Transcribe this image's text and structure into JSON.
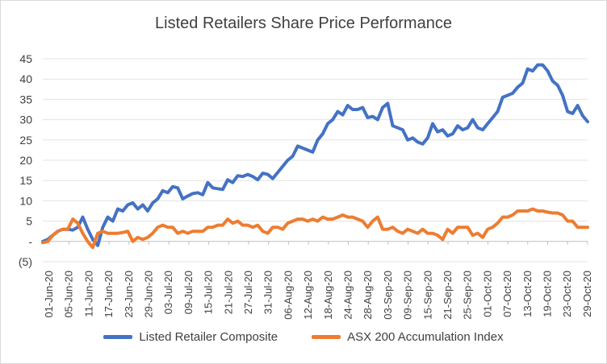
{
  "chart_data": {
    "type": "line",
    "title": "Listed Retailers Share Price Performance",
    "xlabel": "",
    "ylabel": "",
    "ylim": [
      -5,
      45
    ],
    "yticks": [
      "45",
      "40",
      "35",
      "30",
      "25",
      "20",
      "15",
      "10",
      "5",
      "-",
      "(5)"
    ],
    "ytick_values": [
      45,
      40,
      35,
      30,
      25,
      20,
      15,
      10,
      5,
      0,
      -5
    ],
    "grid": true,
    "legend_position": "bottom",
    "x_tick_labels": [
      "01-Jun-20",
      "05-Jun-20",
      "11-Jun-20",
      "17-Jun-20",
      "23-Jun-20",
      "29-Jun-20",
      "03-Jul-20",
      "09-Jul-20",
      "15-Jul-20",
      "21-Jul-20",
      "27-Jul-20",
      "31-Jul-20",
      "06-Aug-20",
      "12-Aug-20",
      "18-Aug-20",
      "24-Aug-20",
      "28-Aug-20",
      "03-Sep-20",
      "09-Sep-20",
      "15-Sep-20",
      "21-Sep-20",
      "25-Sep-20",
      "01-Oct-20",
      "07-Oct-20",
      "13-Oct-20",
      "19-Oct-20",
      "23-Oct-20",
      "29-Oct-20"
    ],
    "n_points": 110,
    "series": [
      {
        "name": "Listed Retailer Composite",
        "color": "#4472c4",
        "values": [
          0,
          0.5,
          1.5,
          2.5,
          3,
          3,
          2.8,
          3.5,
          6,
          3,
          0.5,
          -1,
          3.5,
          6,
          5,
          8,
          7.5,
          9,
          9.5,
          8,
          9,
          7.5,
          9.5,
          10.5,
          12.5,
          12,
          13.5,
          13.2,
          10.5,
          11.2,
          11.8,
          12,
          11.5,
          14.5,
          13.2,
          13,
          12.8,
          15.2,
          14.5,
          16.2,
          16,
          16.5,
          16,
          15.2,
          16.8,
          16.5,
          15.5,
          17,
          18.5,
          20,
          21,
          23.5,
          23,
          22.5,
          22,
          25,
          26.5,
          29,
          30,
          32,
          31.2,
          33.5,
          32.5,
          32.5,
          33,
          30.5,
          30.8,
          30,
          33,
          34,
          28.5,
          28,
          27.5,
          25,
          25.5,
          24.5,
          24,
          25.5,
          29,
          27,
          27.5,
          26,
          26.5,
          28.5,
          27.5,
          28,
          30,
          28,
          27.5,
          29,
          30.5,
          32,
          35.5,
          36,
          36.5,
          38,
          39,
          42.5,
          42,
          43.5,
          43.5,
          42,
          39.5,
          38.5,
          36,
          32,
          31.5,
          33.5,
          31,
          29.5
        ]
      },
      {
        "name": "ASX 200 Accumulation Index",
        "color": "#ed7d31",
        "values": [
          -0.3,
          0,
          1.5,
          2.5,
          3,
          3,
          5.5,
          4.5,
          2,
          0,
          -1.5,
          2,
          2.5,
          2,
          2,
          2,
          2.2,
          2.5,
          0,
          1,
          0.5,
          1,
          2,
          3.5,
          4,
          3.5,
          3.5,
          2,
          2.5,
          2,
          2.5,
          2.5,
          2.5,
          3.5,
          3.5,
          4,
          4,
          5.5,
          4.5,
          5,
          4,
          4,
          3.5,
          4,
          2.5,
          2,
          3.5,
          3.5,
          3,
          4.5,
          5,
          5.5,
          5.5,
          5,
          5.5,
          5,
          6,
          5.5,
          5.5,
          6,
          6.5,
          6,
          6,
          5.5,
          5,
          3.5,
          5,
          6,
          3,
          3,
          3.5,
          2.5,
          2,
          3,
          2.5,
          2,
          3,
          2,
          2,
          1.5,
          0.5,
          3,
          2,
          3.5,
          3.5,
          3.5,
          1.5,
          2,
          1,
          3,
          3.5,
          4.5,
          6,
          6,
          6.5,
          7.5,
          7.5,
          7.5,
          8,
          7.5,
          7.5,
          7.2,
          7,
          7,
          6.5,
          5,
          5,
          3.5,
          3.5,
          3.5
        ]
      }
    ]
  }
}
